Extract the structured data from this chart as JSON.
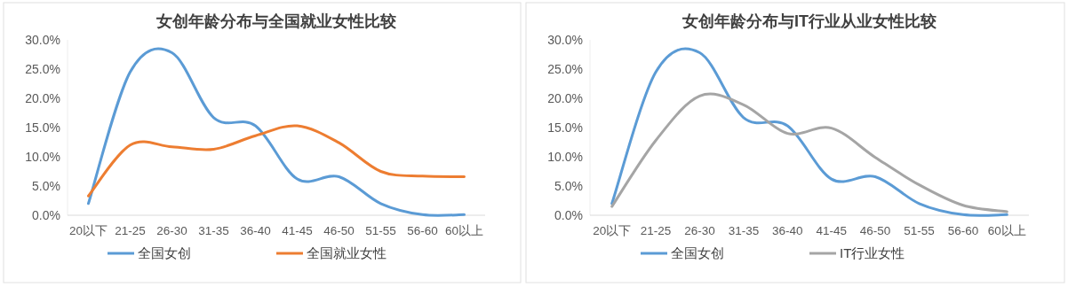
{
  "chart_data": [
    {
      "type": "line",
      "title": "女创年龄分布与全国就业女性比较",
      "categories": [
        "20以下",
        "21-25",
        "26-30",
        "31-35",
        "36-40",
        "41-45",
        "46-50",
        "51-55",
        "56-60",
        "60以上"
      ],
      "series": [
        {
          "name": "全国女创",
          "color": "#5b9bd5",
          "values": [
            2.0,
            24.5,
            27.8,
            16.7,
            15.3,
            6.2,
            6.6,
            2.0,
            0.1,
            0.1
          ]
        },
        {
          "name": "全国就业女性",
          "color": "#ed7d31",
          "values": [
            3.3,
            12.0,
            11.7,
            11.3,
            13.6,
            15.3,
            12.4,
            7.5,
            6.7,
            6.6
          ]
        }
      ],
      "ylim": [
        0,
        30
      ],
      "yticks": [
        {
          "value": 0,
          "label": "0.0%"
        },
        {
          "value": 5,
          "label": "5.0%"
        },
        {
          "value": 10,
          "label": "10.0%"
        },
        {
          "value": 15,
          "label": "15.0%"
        },
        {
          "value": 20,
          "label": "20.0%"
        },
        {
          "value": 25,
          "label": "25.0%"
        },
        {
          "value": 30,
          "label": "30.0%"
        }
      ],
      "grid": false,
      "legend": "bottom"
    },
    {
      "type": "line",
      "title": "女创年龄分布与IT行业从业女性比较",
      "categories": [
        "20以下",
        "21-25",
        "26-30",
        "31-35",
        "36-40",
        "41-45",
        "46-50",
        "51-55",
        "56-60",
        "60以上"
      ],
      "series": [
        {
          "name": "全国女创",
          "color": "#5b9bd5",
          "values": [
            2.0,
            24.5,
            27.8,
            16.7,
            15.3,
            6.2,
            6.6,
            2.0,
            0.1,
            0.1
          ]
        },
        {
          "name": "IT行业女性",
          "color": "#a5a5a5",
          "values": [
            1.5,
            12.8,
            20.4,
            18.9,
            14.0,
            14.9,
            9.9,
            5.2,
            1.7,
            0.6
          ]
        }
      ],
      "ylim": [
        0,
        30
      ],
      "yticks": [
        {
          "value": 0,
          "label": "0.0%"
        },
        {
          "value": 5,
          "label": "5.0%"
        },
        {
          "value": 10,
          "label": "10.0%"
        },
        {
          "value": 15,
          "label": "15.0%"
        },
        {
          "value": 20,
          "label": "20.0%"
        },
        {
          "value": 25,
          "label": "25.0%"
        },
        {
          "value": 30,
          "label": "30.0%"
        }
      ],
      "grid": false,
      "legend": "bottom"
    }
  ]
}
